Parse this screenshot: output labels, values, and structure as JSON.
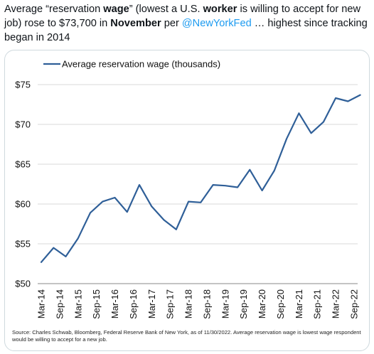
{
  "tweet": {
    "t1": "Average “reservation ",
    "b1": "wage",
    "t2": "” (lowest a U.S. ",
    "b2": "worker",
    "t3": " is willing to accept for new job) rose to $73,700 in ",
    "b3": "November",
    "t4": " per ",
    "mention": "@NewYorkFed",
    "t5": " … highest since tracking began in 2014"
  },
  "source_note": "Source: Charles Schwab, Bloomberg, Federal Reserve Bank of New York, as of 11/30/2022. Average reservation wage is lowest wage respondent would be willing to accept for a new job.",
  "colors": {
    "line": "#2f5f98",
    "grid": "#d9d9d9",
    "mention": "#1d9bf0"
  },
  "chart_data": {
    "type": "line",
    "legend_position": "top-left",
    "grid": "horizontal",
    "ylim": [
      50,
      75
    ],
    "yticks": [
      50,
      55,
      60,
      65,
      70,
      75
    ],
    "ytick_labels": [
      "$50",
      "$55",
      "$60",
      "$65",
      "$70",
      "$75"
    ],
    "xtick_labels": [
      "Mar-14",
      "Sep-14",
      "Mar-15",
      "Sep-15",
      "Mar-16",
      "Sep-16",
      "Mar-17",
      "Sep-17",
      "Mar-18",
      "Sep-18",
      "Mar-19",
      "Sep-19",
      "Mar-20",
      "Sep-20",
      "Mar-21",
      "Sep-21",
      "Mar-22",
      "Sep-22"
    ],
    "series": [
      {
        "name": "Average reservation wage (thousands)",
        "x": [
          "Mar-14",
          "Jul-14",
          "Nov-14",
          "Mar-15",
          "Jul-15",
          "Nov-15",
          "Mar-16",
          "Jul-16",
          "Nov-16",
          "Mar-17",
          "Jul-17",
          "Nov-17",
          "Mar-18",
          "Jul-18",
          "Nov-18",
          "Mar-19",
          "Jul-19",
          "Nov-19",
          "Mar-20",
          "Jul-20",
          "Nov-20",
          "Mar-21",
          "Jul-21",
          "Nov-21",
          "Mar-22",
          "Jul-22",
          "Nov-22"
        ],
        "values": [
          52.7,
          54.5,
          53.4,
          55.7,
          58.9,
          60.3,
          60.8,
          59.0,
          62.4,
          59.7,
          58.0,
          56.8,
          60.3,
          60.2,
          62.4,
          62.3,
          62.1,
          64.3,
          61.7,
          64.2,
          68.2,
          71.4,
          68.9,
          70.3,
          73.3,
          72.9,
          73.7
        ]
      }
    ]
  }
}
